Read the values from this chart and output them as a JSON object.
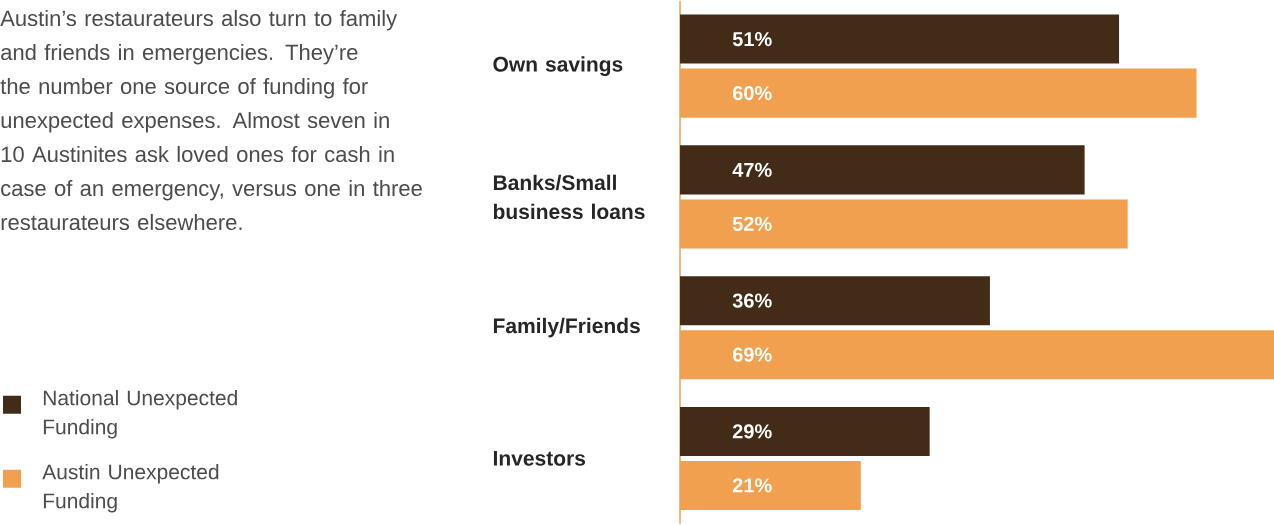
{
  "chart_data": {
    "type": "bar",
    "orientation": "horizontal",
    "annotations": [
      "Austin’s restaurateurs also turn to family and friends in emergencies. They’re the number one source of funding for unexpected expenses. Almost seven in 10 Austinites ask loved ones for cash in case of an emergency, versus one in three restaurateurs elsewhere."
    ],
    "categories": [
      "Own savings",
      "Banks/Small business loans",
      "Family/Friends",
      "Investors"
    ],
    "series": [
      {
        "name": "National Unexpected Funding",
        "color": "#432c17",
        "values": [
          51,
          47,
          36,
          29
        ],
        "value_labels": [
          "51%",
          "47%",
          "36%",
          "29%"
        ]
      },
      {
        "name": "Austin Unexpected Funding",
        "color": "#f0a04f",
        "values": [
          60,
          52,
          69,
          21
        ],
        "value_labels": [
          "60%",
          "52%",
          "69%",
          "21%"
        ]
      }
    ],
    "legend": "bottom left"
  }
}
